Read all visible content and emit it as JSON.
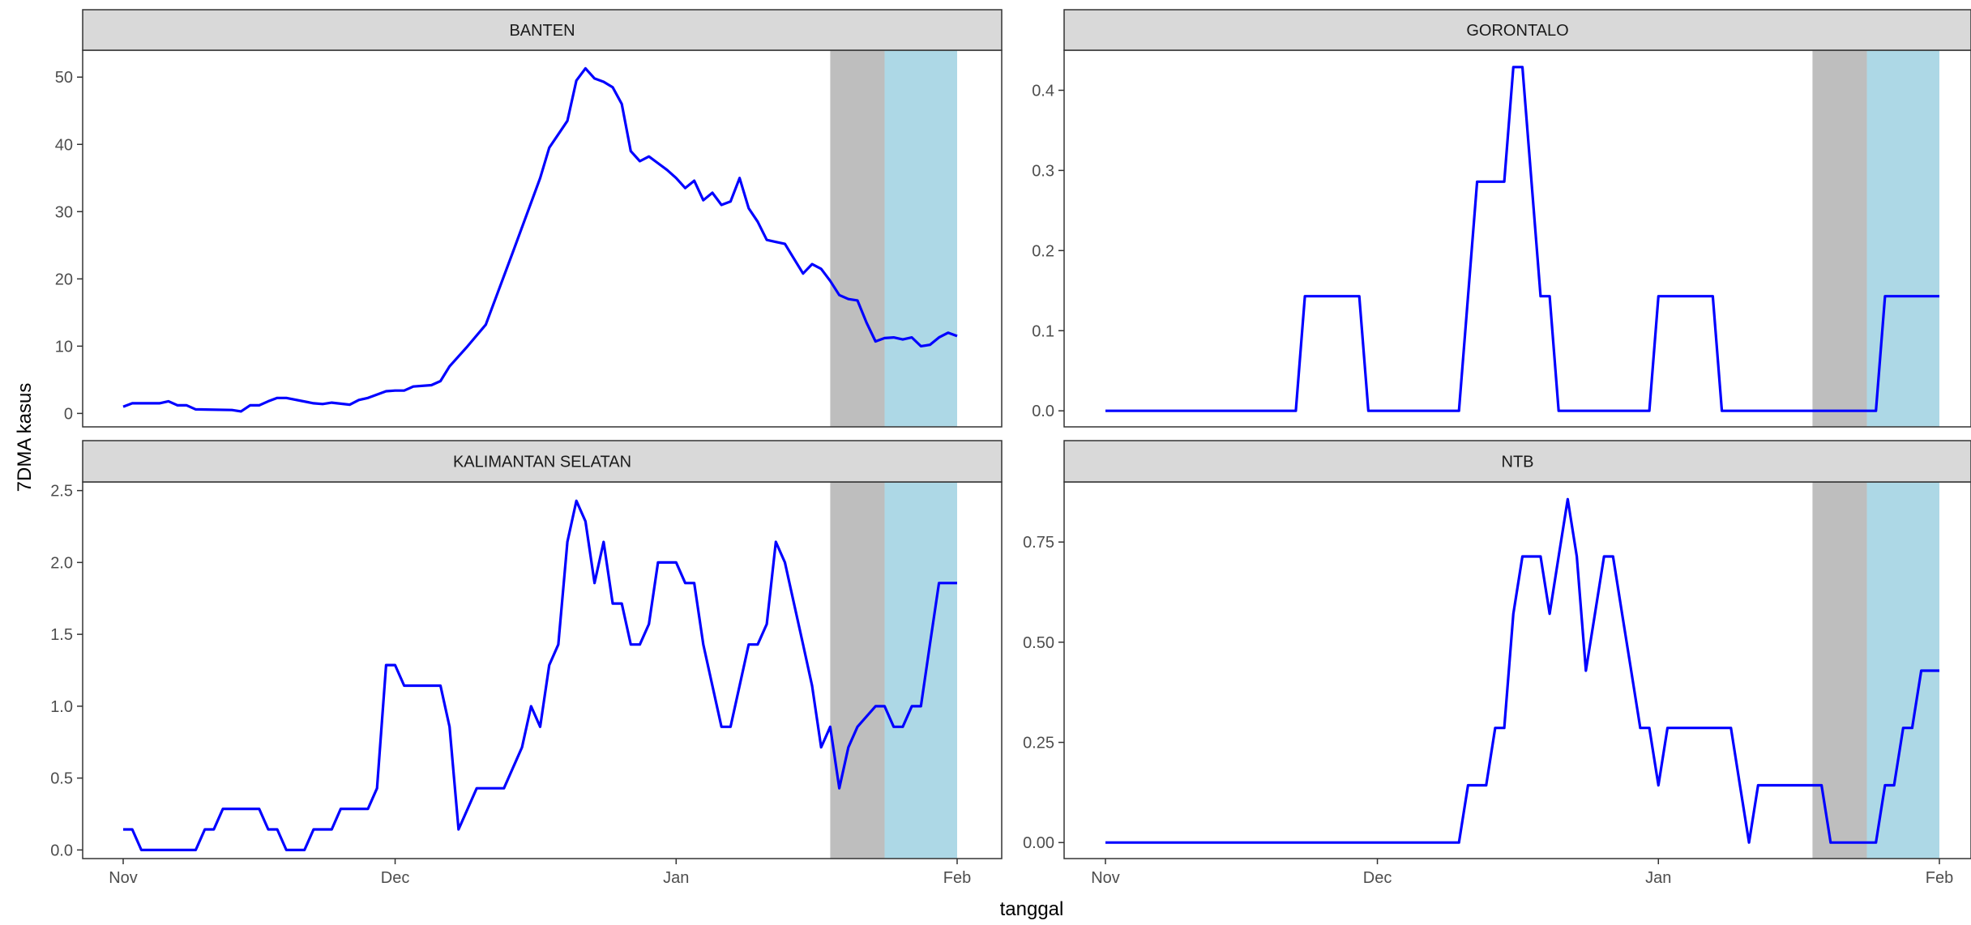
{
  "chart_data": {
    "type": "line",
    "layout": "facet-grid",
    "xlabel": "tanggal",
    "ylabel": "7DMA kasus",
    "x_tick_labels": [
      "Nov",
      "Dec",
      "Jan",
      "Feb"
    ],
    "x_ticks": [
      "2020-11-01",
      "2020-12-01",
      "2021-01-01",
      "2021-02-01"
    ],
    "xlim": [
      "2020-11-01",
      "2021-02-01"
    ],
    "line_color": "#0000ff",
    "bands": [
      {
        "from": "2021-01-18",
        "to": "2021-01-24",
        "color": "#bebebe"
      },
      {
        "from": "2021-01-24",
        "to": "2021-02-01",
        "color": "#add8e6"
      }
    ],
    "strip_color": "#d9d9d9",
    "grid": false,
    "panels": [
      {
        "name": "BANTEN",
        "ylim": [
          -2,
          54
        ],
        "y_ticks": [
          0,
          10,
          20,
          30,
          40,
          50
        ],
        "y_tick_labels": [
          "0",
          "10",
          "20",
          "30",
          "40",
          "50"
        ],
        "x": [
          "2020-11-01",
          "2020-11-02",
          "2020-11-05",
          "2020-11-06",
          "2020-11-07",
          "2020-11-08",
          "2020-11-09",
          "2020-11-13",
          "2020-11-14",
          "2020-11-15",
          "2020-11-16",
          "2020-11-17",
          "2020-11-18",
          "2020-11-19",
          "2020-11-22",
          "2020-11-23",
          "2020-11-24",
          "2020-11-26",
          "2020-11-27",
          "2020-11-28",
          "2020-11-30",
          "2020-12-01",
          "2020-12-02",
          "2020-12-03",
          "2020-12-05",
          "2020-12-06",
          "2020-12-07",
          "2020-12-09",
          "2020-12-11",
          "2020-12-14",
          "2020-12-17",
          "2020-12-18",
          "2020-12-19",
          "2020-12-20",
          "2020-12-21",
          "2020-12-22",
          "2020-12-23",
          "2020-12-24",
          "2020-12-25",
          "2020-12-26",
          "2020-12-27",
          "2020-12-28",
          "2020-12-29",
          "2020-12-30",
          "2020-12-31",
          "2021-01-01",
          "2021-01-02",
          "2021-01-03",
          "2021-01-04",
          "2021-01-05",
          "2021-01-06",
          "2021-01-07",
          "2021-01-08",
          "2021-01-09",
          "2021-01-10",
          "2021-01-11",
          "2021-01-12",
          "2021-01-13",
          "2021-01-14",
          "2021-01-15",
          "2021-01-16",
          "2021-01-17",
          "2021-01-18",
          "2021-01-19",
          "2021-01-20",
          "2021-01-21",
          "2021-01-22",
          "2021-01-23",
          "2021-01-24",
          "2021-01-25",
          "2021-01-26",
          "2021-01-27",
          "2021-01-28",
          "2021-01-29",
          "2021-01-30",
          "2021-01-31",
          "2021-02-01"
        ],
        "y": [
          1.0,
          1.5,
          1.5,
          1.8,
          1.2,
          1.2,
          0.6,
          0.5,
          0.3,
          1.2,
          1.2,
          1.8,
          2.3,
          2.3,
          1.5,
          1.4,
          1.6,
          1.3,
          2.0,
          2.3,
          3.3,
          3.4,
          3.4,
          4.0,
          4.2,
          4.8,
          7.0,
          10.0,
          13.2,
          24.0,
          35.0,
          39.5,
          41.5,
          43.5,
          49.5,
          51.3,
          49.8,
          49.3,
          48.5,
          46.0,
          39.0,
          37.5,
          38.2,
          37.2,
          36.2,
          35.0,
          33.5,
          34.6,
          31.7,
          32.8,
          31.0,
          31.5,
          35.0,
          30.5,
          28.5,
          25.8,
          25.5,
          25.2,
          23.0,
          20.8,
          22.2,
          21.5,
          19.7,
          17.6,
          17.0,
          16.8,
          13.5,
          10.7,
          11.2,
          11.3,
          11.0,
          11.3,
          10.0,
          10.2,
          11.3,
          12.0,
          11.5
        ]
      },
      {
        "name": "GORONTALO",
        "ylim": [
          -0.02,
          0.45
        ],
        "y_ticks": [
          0.0,
          0.1,
          0.2,
          0.3,
          0.4
        ],
        "y_tick_labels": [
          "0.0",
          "0.1",
          "0.2",
          "0.3",
          "0.4"
        ],
        "x": [
          "2020-11-01",
          "2020-11-22",
          "2020-11-23",
          "2020-11-29",
          "2020-11-30",
          "2020-12-10",
          "2020-12-12",
          "2020-12-15",
          "2020-12-16",
          "2020-12-17",
          "2020-12-19",
          "2020-12-20",
          "2020-12-21",
          "2020-12-31",
          "2021-01-01",
          "2021-01-07",
          "2021-01-08",
          "2021-01-23",
          "2021-01-25",
          "2021-01-26",
          "2021-02-01"
        ],
        "y": [
          0,
          0,
          0.143,
          0.143,
          0,
          0,
          0.286,
          0.286,
          0.429,
          0.429,
          0.143,
          0.143,
          0,
          0,
          0.143,
          0.143,
          0,
          0,
          0,
          0.143,
          0.143
        ]
      },
      {
        "name": "KALIMANTAN SELATAN",
        "ylim": [
          -0.06,
          2.56
        ],
        "y_ticks": [
          0.0,
          0.5,
          1.0,
          1.5,
          2.0,
          2.5
        ],
        "y_tick_labels": [
          "0.0",
          "0.5",
          "1.0",
          "1.5",
          "2.0",
          "2.5"
        ],
        "x": [
          "2020-11-01",
          "2020-11-02",
          "2020-11-03",
          "2020-11-09",
          "2020-11-10",
          "2020-11-11",
          "2020-11-12",
          "2020-11-16",
          "2020-11-17",
          "2020-11-18",
          "2020-11-19",
          "2020-11-21",
          "2020-11-22",
          "2020-11-24",
          "2020-11-25",
          "2020-11-28",
          "2020-11-29",
          "2020-11-30",
          "2020-12-01",
          "2020-12-02",
          "2020-12-03",
          "2020-12-06",
          "2020-12-07",
          "2020-12-08",
          "2020-12-09",
          "2020-12-10",
          "2020-12-13",
          "2020-12-14",
          "2020-12-15",
          "2020-12-16",
          "2020-12-17",
          "2020-12-18",
          "2020-12-19",
          "2020-12-20",
          "2020-12-21",
          "2020-12-22",
          "2020-12-23",
          "2020-12-24",
          "2020-12-25",
          "2020-12-26",
          "2020-12-27",
          "2020-12-28",
          "2020-12-29",
          "2020-12-30",
          "2020-12-31",
          "2021-01-01",
          "2021-01-02",
          "2021-01-03",
          "2021-01-04",
          "2021-01-05",
          "2021-01-06",
          "2021-01-07",
          "2021-01-08",
          "2021-01-09",
          "2021-01-10",
          "2021-01-11",
          "2021-01-12",
          "2021-01-13",
          "2021-01-14",
          "2021-01-15",
          "2021-01-16",
          "2021-01-17",
          "2021-01-18",
          "2021-01-19",
          "2021-01-20",
          "2021-01-21",
          "2021-01-23",
          "2021-01-24",
          "2021-01-25",
          "2021-01-26",
          "2021-01-27",
          "2021-01-28",
          "2021-01-29",
          "2021-01-30",
          "2021-02-01"
        ],
        "y": [
          0.143,
          0.143,
          0,
          0,
          0.143,
          0.143,
          0.286,
          0.286,
          0.143,
          0.143,
          0,
          0,
          0.143,
          0.143,
          0.286,
          0.286,
          0.429,
          1.286,
          1.286,
          1.143,
          1.143,
          1.143,
          0.857,
          0.143,
          0.286,
          0.429,
          0.429,
          0.571,
          0.714,
          1.0,
          0.857,
          1.286,
          1.429,
          2.143,
          2.429,
          2.286,
          1.857,
          2.143,
          1.714,
          1.714,
          1.429,
          1.429,
          1.571,
          2.0,
          2.0,
          2.0,
          1.857,
          1.857,
          1.429,
          1.143,
          0.857,
          0.857,
          1.143,
          1.429,
          1.429,
          1.571,
          2.143,
          2.0,
          1.714,
          1.429,
          1.143,
          0.714,
          0.857,
          0.429,
          0.714,
          0.857,
          1.0,
          1.0,
          0.857,
          0.857,
          1.0,
          1.0,
          1.429,
          1.857,
          1.857
        ]
      },
      {
        "name": "NTB",
        "ylim": [
          -0.04,
          0.9
        ],
        "y_ticks": [
          0.0,
          0.25,
          0.5,
          0.75
        ],
        "y_tick_labels": [
          "0.00",
          "0.25",
          "0.50",
          "0.75"
        ],
        "x": [
          "2020-11-01",
          "2020-12-10",
          "2020-12-11",
          "2020-12-13",
          "2020-12-14",
          "2020-12-15",
          "2020-12-16",
          "2020-12-17",
          "2020-12-18",
          "2020-12-19",
          "2020-12-20",
          "2020-12-21",
          "2020-12-22",
          "2020-12-23",
          "2020-12-24",
          "2020-12-25",
          "2020-12-26",
          "2020-12-27",
          "2020-12-28",
          "2020-12-29",
          "2020-12-30",
          "2020-12-31",
          "2021-01-01",
          "2021-01-02",
          "2021-01-09",
          "2021-01-10",
          "2021-01-11",
          "2021-01-12",
          "2021-01-19",
          "2021-01-20",
          "2021-01-25",
          "2021-01-26",
          "2021-01-27",
          "2021-01-28",
          "2021-01-29",
          "2021-01-30",
          "2021-02-01"
        ],
        "y": [
          0,
          0,
          0.143,
          0.143,
          0.286,
          0.286,
          0.571,
          0.714,
          0.714,
          0.714,
          0.571,
          0.714,
          0.857,
          0.714,
          0.429,
          0.571,
          0.714,
          0.714,
          0.571,
          0.429,
          0.286,
          0.286,
          0.143,
          0.286,
          0.286,
          0.143,
          0,
          0.143,
          0.143,
          0,
          0,
          0.143,
          0.143,
          0.286,
          0.286,
          0.429,
          0.429
        ]
      }
    ]
  }
}
